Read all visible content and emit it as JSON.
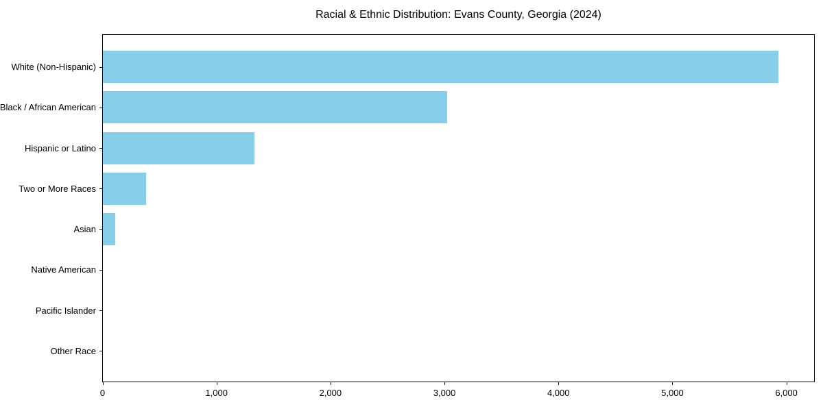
{
  "figure": {
    "background": "#ffffff"
  },
  "chart_data": {
    "type": "bar",
    "orientation": "horizontal",
    "title": "Racial & Ethnic Distribution: Evans County, Georgia (2024)",
    "categories": [
      "White (Non-Hispanic)",
      "Black / African American",
      "Hispanic or Latino",
      "Two or More Races",
      "Asian",
      "Native American",
      "Pacific Islander",
      "Other Race"
    ],
    "values": [
      5930,
      3020,
      1330,
      380,
      110,
      0,
      0,
      0
    ],
    "xlabel": "",
    "ylabel": "",
    "xlim": [
      0,
      6240
    ],
    "xticks": [
      0,
      1000,
      2000,
      3000,
      4000,
      5000,
      6000
    ],
    "xtick_labels": [
      "0",
      "1,000",
      "2,000",
      "3,000",
      "4,000",
      "5,000",
      "6,000"
    ],
    "bar_color": "#87CEEB",
    "axis_color": "#000000",
    "grid": false,
    "legend": null
  }
}
